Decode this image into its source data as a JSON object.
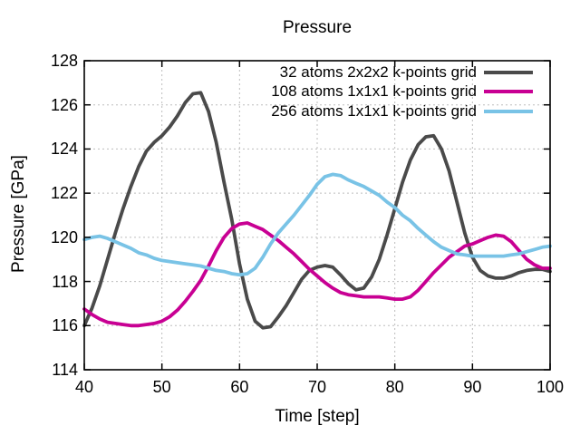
{
  "window": {
    "background": "#ffffff"
  },
  "chart_data": {
    "type": "line",
    "title": "Pressure",
    "xlabel": "Time [step]",
    "ylabel": "Pressure [GPa]",
    "xlim": [
      40,
      100
    ],
    "ylim": [
      114,
      128
    ],
    "xticks": [
      40,
      50,
      60,
      70,
      80,
      90,
      100
    ],
    "yticks": [
      114,
      116,
      118,
      120,
      122,
      124,
      126,
      128
    ],
    "grid": true,
    "legend_position": "inside-top-right",
    "colors": {
      "background": "#ffffff",
      "axis": "#000000",
      "text": "#000000",
      "grid": "#bdbdbd"
    },
    "x": [
      40,
      41,
      42,
      43,
      44,
      45,
      46,
      47,
      48,
      49,
      50,
      51,
      52,
      53,
      54,
      55,
      56,
      57,
      58,
      59,
      60,
      61,
      62,
      63,
      64,
      65,
      66,
      67,
      68,
      69,
      70,
      71,
      72,
      73,
      74,
      75,
      76,
      77,
      78,
      79,
      80,
      81,
      82,
      83,
      84,
      85,
      86,
      87,
      88,
      89,
      90,
      91,
      92,
      93,
      94,
      95,
      96,
      97,
      98,
      99,
      100
    ],
    "series": [
      {
        "name": "32 atoms 2x2x2 k-points grid",
        "color": "#4a4a4a",
        "values": [
          116.0,
          116.8,
          117.8,
          119.0,
          120.2,
          121.3,
          122.3,
          123.2,
          123.9,
          124.3,
          124.6,
          125.0,
          125.5,
          126.1,
          126.5,
          126.55,
          125.7,
          124.3,
          122.5,
          120.8,
          118.8,
          117.2,
          116.2,
          115.9,
          115.95,
          116.4,
          116.9,
          117.5,
          118.1,
          118.5,
          118.65,
          118.72,
          118.65,
          118.3,
          117.9,
          117.62,
          117.7,
          118.2,
          119.0,
          120.1,
          121.3,
          122.5,
          123.5,
          124.2,
          124.55,
          124.6,
          124.0,
          123.0,
          121.6,
          120.2,
          119.1,
          118.5,
          118.25,
          118.15,
          118.15,
          118.25,
          118.4,
          118.5,
          118.55,
          118.55,
          118.45
        ]
      },
      {
        "name": "108 atoms 1x1x1 k-points grid",
        "color": "#c80093",
        "values": [
          116.75,
          116.5,
          116.3,
          116.15,
          116.1,
          116.05,
          116.0,
          116.0,
          116.05,
          116.1,
          116.2,
          116.4,
          116.7,
          117.1,
          117.55,
          118.05,
          118.7,
          119.4,
          120.0,
          120.4,
          120.6,
          120.65,
          120.5,
          120.35,
          120.1,
          119.85,
          119.55,
          119.25,
          118.9,
          118.55,
          118.25,
          117.95,
          117.7,
          117.5,
          117.4,
          117.35,
          117.3,
          117.3,
          117.3,
          117.25,
          117.2,
          117.2,
          117.3,
          117.6,
          118.0,
          118.4,
          118.75,
          119.1,
          119.35,
          119.6,
          119.7,
          119.85,
          120.0,
          120.1,
          120.05,
          119.8,
          119.4,
          119.0,
          118.75,
          118.6,
          118.6
        ]
      },
      {
        "name": "256 atoms 1x1x1 k-points grid",
        "color": "#79c3e6",
        "values": [
          119.9,
          120.0,
          120.05,
          119.95,
          119.8,
          119.65,
          119.5,
          119.3,
          119.2,
          119.05,
          118.95,
          118.9,
          118.85,
          118.8,
          118.75,
          118.7,
          118.6,
          118.5,
          118.45,
          118.35,
          118.3,
          118.35,
          118.6,
          119.1,
          119.7,
          120.2,
          120.6,
          121.0,
          121.45,
          121.9,
          122.4,
          122.75,
          122.85,
          122.8,
          122.6,
          122.45,
          122.3,
          122.1,
          121.9,
          121.6,
          121.35,
          121.0,
          120.75,
          120.4,
          120.1,
          119.8,
          119.55,
          119.4,
          119.25,
          119.2,
          119.15,
          119.15,
          119.15,
          119.15,
          119.15,
          119.2,
          119.25,
          119.35,
          119.45,
          119.55,
          119.6
        ]
      }
    ]
  }
}
